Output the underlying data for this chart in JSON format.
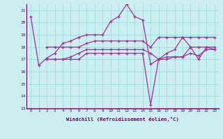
{
  "xlabel": "Windchill (Refroidissement éolien,°C)",
  "background_color": "#cceef0",
  "grid_color": "#99dddd",
  "line_color": "#993399",
  "xlim": [
    -0.5,
    23.5
  ],
  "ylim": [
    13,
    21.5
  ],
  "yticks": [
    13,
    14,
    15,
    16,
    17,
    18,
    19,
    20,
    21
  ],
  "xticks": [
    0,
    1,
    2,
    3,
    4,
    5,
    6,
    7,
    8,
    9,
    10,
    11,
    12,
    13,
    14,
    15,
    16,
    17,
    18,
    19,
    20,
    21,
    22,
    23
  ],
  "series": [
    {
      "x": [
        0,
        1,
        2,
        3,
        4,
        5,
        6,
        7,
        8,
        9,
        10,
        11,
        12,
        13,
        14,
        15,
        16,
        17,
        18,
        19,
        20,
        21,
        22,
        23
      ],
      "y": [
        20.5,
        16.5,
        17.1,
        17.5,
        18.3,
        18.5,
        18.8,
        19.0,
        19.0,
        19.0,
        20.1,
        20.5,
        21.5,
        20.5,
        20.2,
        16.6,
        17.0,
        17.5,
        17.8,
        18.8,
        18.0,
        18.0,
        18.0,
        18.0
      ]
    },
    {
      "x": [
        2,
        3,
        4,
        5,
        6,
        7,
        8,
        9,
        10,
        11,
        12,
        13,
        14,
        15,
        16,
        17,
        18,
        19,
        20,
        21,
        22,
        23
      ],
      "y": [
        18.0,
        18.0,
        18.0,
        18.0,
        18.0,
        18.3,
        18.5,
        18.5,
        18.5,
        18.5,
        18.5,
        18.5,
        18.5,
        18.0,
        18.8,
        18.8,
        18.8,
        18.8,
        18.8,
        18.8,
        18.8,
        18.8
      ]
    },
    {
      "x": [
        2,
        3,
        4,
        5,
        6,
        7,
        8,
        9,
        10,
        11,
        12,
        13,
        14,
        15,
        16,
        17,
        18,
        19,
        20,
        21,
        22,
        23
      ],
      "y": [
        17.0,
        17.0,
        17.0,
        17.2,
        17.5,
        17.8,
        17.8,
        17.8,
        17.8,
        17.8,
        17.8,
        17.8,
        17.8,
        17.5,
        17.0,
        17.2,
        17.2,
        17.2,
        17.5,
        17.3,
        17.8,
        17.8
      ]
    },
    {
      "x": [
        2,
        3,
        4,
        5,
        6,
        7,
        8,
        9,
        10,
        11,
        12,
        13,
        14,
        15,
        16,
        17,
        18,
        19,
        20,
        21,
        22,
        23
      ],
      "y": [
        17.0,
        17.0,
        17.0,
        17.0,
        17.0,
        17.5,
        17.5,
        17.5,
        17.5,
        17.5,
        17.5,
        17.5,
        17.5,
        13.3,
        17.0,
        17.0,
        17.2,
        17.2,
        18.0,
        17.0,
        18.0,
        17.8
      ]
    }
  ]
}
